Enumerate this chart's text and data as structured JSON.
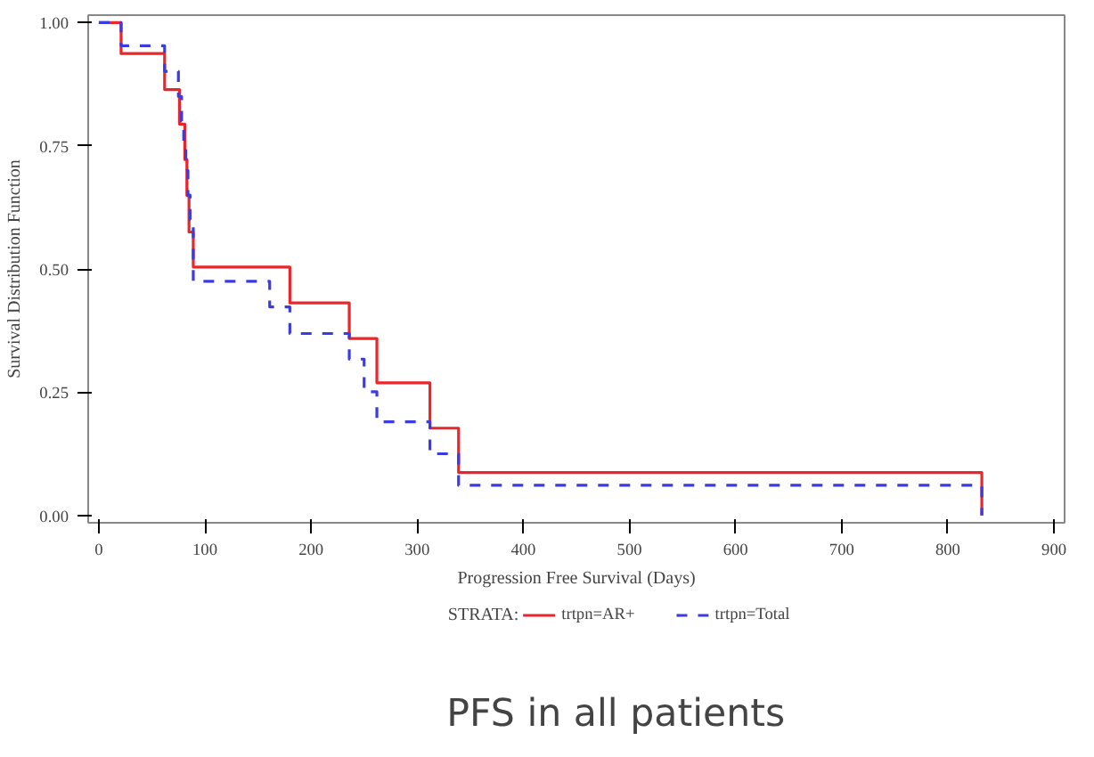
{
  "chart_data": {
    "type": "step",
    "xlabel": "Progression Free Survival (Days)",
    "ylabel": "Survival Distribution Function",
    "legend_title": "STRATA:",
    "legend": "bottom",
    "grid": false,
    "marker": "none",
    "xlim": [
      -10,
      910
    ],
    "xticks": [
      0,
      100,
      200,
      300,
      400,
      500,
      600,
      700,
      800,
      900
    ],
    "ylim": [
      -0.015,
      1.015
    ],
    "yticks": [
      {
        "value": 0,
        "label": "0.00"
      },
      {
        "value": 0.25,
        "label": "0.25"
      },
      {
        "value": 0.5,
        "label": "0.50"
      },
      {
        "value": 0.75,
        "label": "0.75"
      },
      {
        "value": 1,
        "label": "1.00"
      }
    ],
    "series": [
      {
        "name": "trtpn=AR+",
        "color": "#e8262b",
        "line_style": "solid",
        "x": [
          0,
          21,
          62,
          76,
          81,
          83,
          85,
          89,
          180,
          236,
          262,
          312,
          339,
          832
        ],
        "values": [
          1.0,
          0.937,
          0.864,
          0.794,
          0.722,
          0.649,
          0.575,
          0.504,
          0.431,
          0.359,
          0.269,
          0.177,
          0.087,
          0.0
        ]
      },
      {
        "name": "trtpn=Total",
        "color": "#3b3be6",
        "line_style": "dashed",
        "x": [
          0,
          21,
          62,
          75,
          78,
          80,
          82,
          84,
          86,
          89,
          161,
          180,
          236,
          250,
          262,
          312,
          339,
          832
        ],
        "values": [
          1.0,
          0.953,
          0.901,
          0.85,
          0.8,
          0.75,
          0.7,
          0.65,
          0.6,
          0.475,
          0.423,
          0.369,
          0.317,
          0.251,
          0.19,
          0.125,
          0.061,
          0.0
        ]
      }
    ],
    "annotations": [
      "PFS in all patients"
    ]
  }
}
